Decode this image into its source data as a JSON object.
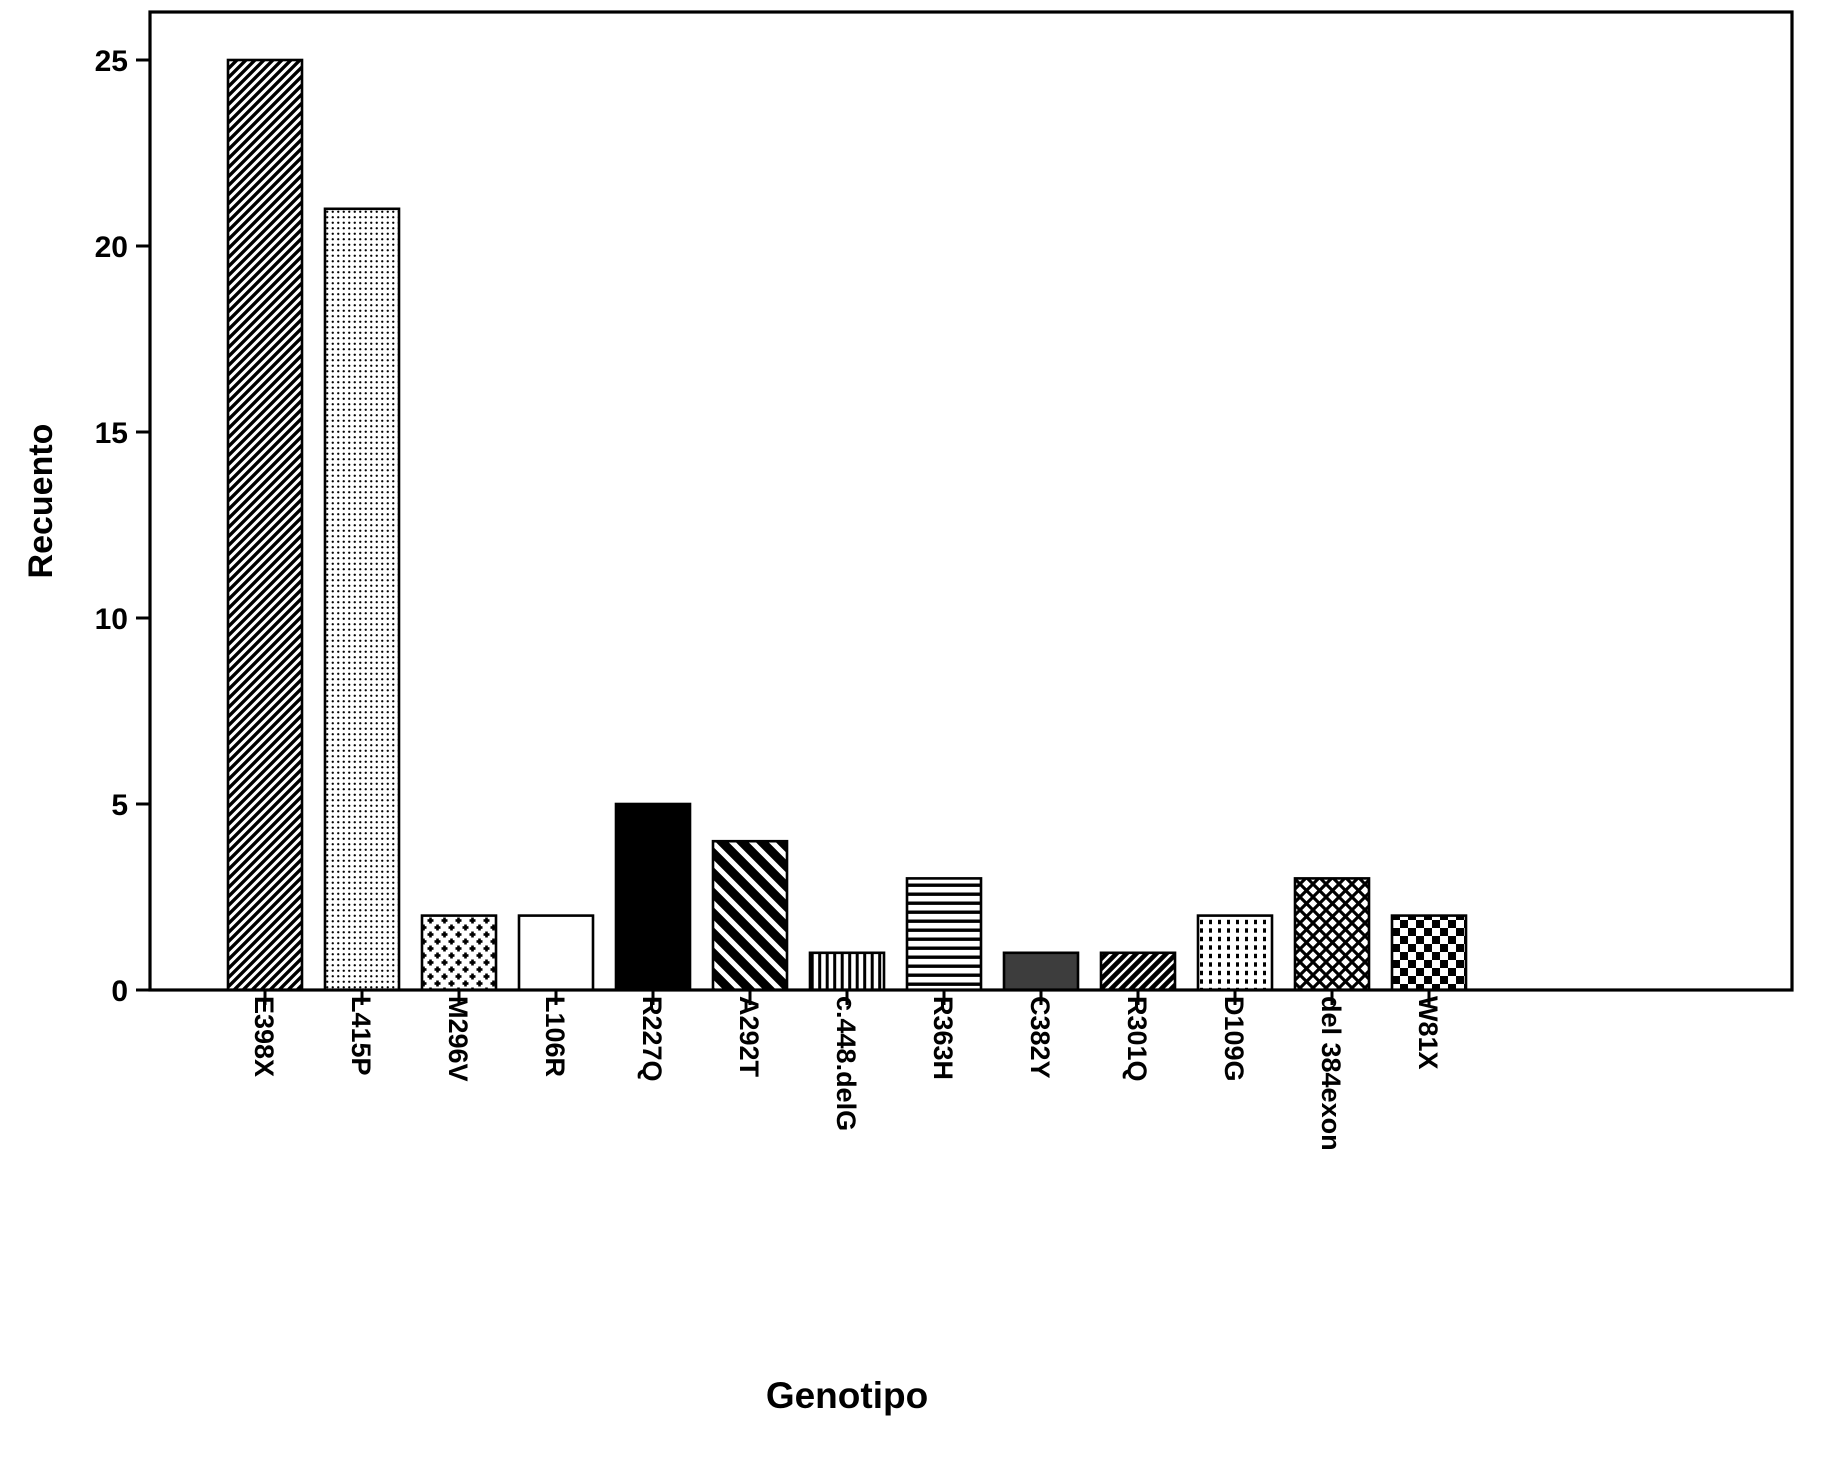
{
  "figure": {
    "background": "#ffffff",
    "ink": "#000000"
  },
  "chart_data": {
    "type": "bar",
    "title": "",
    "xlabel": "Genotipo",
    "ylabel": "Recuento",
    "ylim": [
      0,
      26.3
    ],
    "yticks": [
      0,
      5,
      10,
      15,
      20,
      25
    ],
    "grid": false,
    "legend": "none",
    "categories": [
      "E398X",
      "L415P",
      "M296V",
      "L106R",
      "R227Q",
      "A292T",
      "c.448.delG",
      "R363H",
      "C382Y",
      "R301Q",
      "D109G",
      "del 384exon",
      "W81X"
    ],
    "values": [
      25,
      21,
      2,
      2,
      5,
      4,
      1,
      3,
      1,
      1,
      2,
      3,
      2
    ],
    "bar_fill_patterns": [
      "diagonal-up",
      "fine-dots",
      "plus-grid",
      "plain-white",
      "solid-black",
      "wide-diagonal-down",
      "vertical-stripes",
      "horizontal-stripes",
      "solid-darkgray",
      "dense-diagonal-up",
      "dotted-vertical",
      "diamond-crosshatch",
      "checkerboard"
    ],
    "bar_outline_color": "#000000",
    "pattern_colors": {
      "solid-black": "#000000",
      "solid-darkgray": "#3d3d3d",
      "plain-white": "#ffffff"
    }
  }
}
